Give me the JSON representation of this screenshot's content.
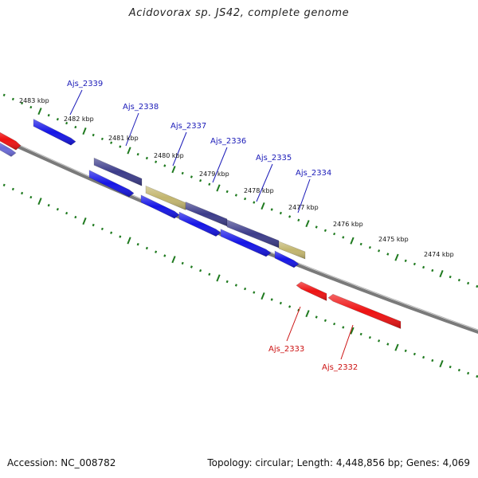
{
  "title": "Acidovorax sp. JS42, complete genome",
  "footer": {
    "accession": "Accession: NC_008782",
    "summary": "Topology: circular; Length: 4,448,856 bp; Genes: 4,069"
  },
  "colors": {
    "forward_strand": "#1515e6",
    "reverse_strand": "#ee1111",
    "forward_dark": "#3c3c8a",
    "olive": "#c2b56e",
    "violet": "#6a6ad8",
    "backbone": "#7a7a7a",
    "tick": "#1f7a1f",
    "forward_label": "#1a1ab8",
    "reverse_label": "#cc1111"
  },
  "scale_ticks": [
    "2483 kbp",
    "2482 kbp",
    "2481 kbp",
    "2480 kbp",
    "2479 kbp",
    "2478 kbp",
    "2477 kbp",
    "2476 kbp",
    "2475 kbp",
    "2474 kbp"
  ],
  "gene_labels": {
    "forward": [
      "Ajs_2339",
      "Ajs_2338",
      "Ajs_2337",
      "Ajs_2336",
      "Ajs_2335",
      "Ajs_2334"
    ],
    "reverse": [
      "Ajs_2333",
      "Ajs_2332"
    ]
  }
}
